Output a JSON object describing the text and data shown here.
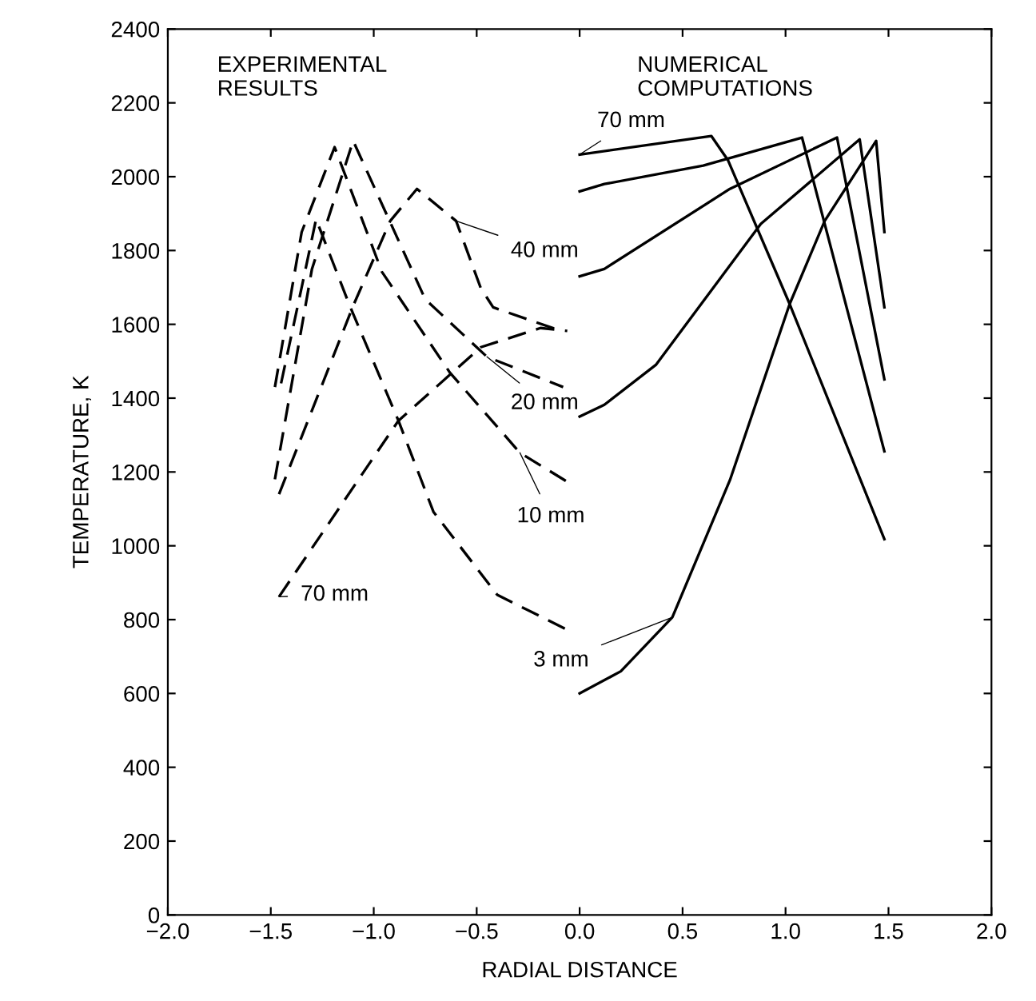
{
  "chart_data": {
    "type": "line",
    "xlabel": "RADIAL DISTANCE",
    "ylabel": "TEMPERATURE, K",
    "xlim": [
      -2.0,
      2.0
    ],
    "ylim": [
      0,
      2400
    ],
    "xticks": [
      {
        "value": -2.0,
        "label": "−2.0"
      },
      {
        "value": -1.5,
        "label": "−1.5"
      },
      {
        "value": -1.0,
        "label": "−1.0"
      },
      {
        "value": -0.5,
        "label": "−0.5"
      },
      {
        "value": 0.0,
        "label": "0.0"
      },
      {
        "value": 0.5,
        "label": "0.5"
      },
      {
        "value": 1.0,
        "label": "1.0"
      },
      {
        "value": 1.5,
        "label": "1.5"
      },
      {
        "value": 2.0,
        "label": "2.0"
      }
    ],
    "yticks": [
      0,
      200,
      400,
      600,
      800,
      1000,
      1200,
      1400,
      1600,
      1800,
      2000,
      2200,
      2400
    ],
    "grid": false,
    "legend": false,
    "marker": "none",
    "series": [
      {
        "color": "#000000",
        "line_style": "dashed",
        "x": [
          -1.45,
          -1.35,
          -1.28,
          -1.12,
          -0.88,
          -0.71,
          -0.4,
          -0.04
        ],
        "values": [
          1440,
          1700,
          1885,
          1655,
          1339,
          1092,
          867,
          767
        ]
      },
      {
        "color": "#000000",
        "line_style": "dashed",
        "x": [
          -1.48,
          -1.35,
          -1.19,
          -0.96,
          -0.63,
          -0.29,
          -0.05
        ],
        "values": [
          1430,
          1850,
          2080,
          1742,
          1469,
          1252,
          1170
        ]
      },
      {
        "color": "#000000",
        "line_style": "dashed",
        "x": [
          -1.48,
          -1.3,
          -1.1,
          -0.75,
          -0.45,
          -0.08
        ],
        "values": [
          1180,
          1750,
          2097,
          1668,
          1512,
          1430
        ]
      },
      {
        "color": "#000000",
        "line_style": "dashed",
        "x": [
          -1.46,
          -1.1,
          -0.92,
          -0.79,
          -0.6,
          -0.48,
          -0.42,
          -0.09
        ],
        "values": [
          1140,
          1650,
          1880,
          1967,
          1880,
          1698,
          1646,
          1582
        ]
      },
      {
        "color": "#000000",
        "line_style": "dashed",
        "x": [
          -1.46,
          -0.88,
          -0.48,
          -0.19,
          -0.06
        ],
        "values": [
          862,
          1339,
          1538,
          1590,
          1582
        ]
      },
      {
        "color": "#000000",
        "line_style": "solid",
        "x": [
          0.0,
          0.2,
          0.45,
          0.73,
          1.02,
          1.19,
          1.44,
          1.48
        ],
        "values": [
          600,
          660,
          806,
          1178,
          1655,
          1880,
          2097,
          1850
        ]
      },
      {
        "color": "#000000",
        "line_style": "solid",
        "x": [
          0.0,
          0.12,
          0.37,
          0.88,
          1.36,
          1.48
        ],
        "values": [
          1350,
          1382,
          1490,
          1872,
          2101,
          1646
        ]
      },
      {
        "color": "#000000",
        "line_style": "solid",
        "x": [
          0.0,
          0.12,
          0.73,
          1.25,
          1.48
        ],
        "values": [
          1730,
          1750,
          1967,
          2106,
          1451
        ]
      },
      {
        "color": "#000000",
        "line_style": "solid",
        "x": [
          0.0,
          0.12,
          0.6,
          1.08,
          1.48
        ],
        "values": [
          1960,
          1980,
          2030,
          2106,
          1256
        ]
      },
      {
        "color": "#000000",
        "line_style": "solid",
        "x": [
          0.0,
          0.64,
          0.72,
          1.02,
          1.48
        ],
        "values": [
          2060,
          2110,
          2045,
          1655,
          1018
        ]
      }
    ],
    "annotations": [
      "EXPERIMENTAL\nRESULTS",
      "NUMERICAL\nCOMPUTATIONS",
      {
        "text": "40 mm",
        "x": -0.6,
        "y": 1880
      },
      {
        "text": "20 mm",
        "x": -0.45,
        "y": 1512
      },
      {
        "text": "10 mm",
        "x": -0.29,
        "y": 1252
      },
      {
        "text": "70 mm",
        "x": -1.46,
        "y": 862
      },
      {
        "text": "3 mm",
        "x": 0.45,
        "y": 806
      },
      {
        "text": "70 mm",
        "x": 0.0,
        "y": 2060
      }
    ]
  }
}
